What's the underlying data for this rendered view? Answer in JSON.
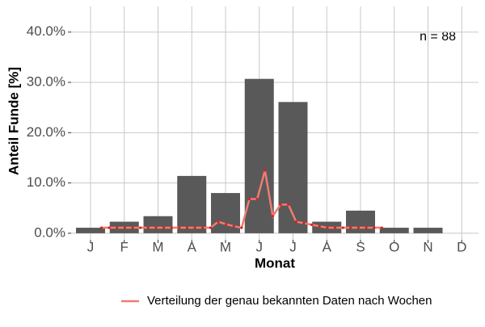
{
  "chart_data": {
    "type": "bar",
    "x_label": "Monat",
    "y_label": "Anteil Funde [%]",
    "annotation": "n = 88",
    "categories": [
      "J",
      "F",
      "M",
      "A",
      "M",
      "J",
      "J",
      "A",
      "S",
      "O",
      "N",
      "D"
    ],
    "values": [
      1.1,
      2.3,
      3.4,
      11.4,
      8.0,
      30.7,
      26.1,
      2.3,
      4.5,
      1.1,
      1.1,
      0
    ],
    "color": "#595959",
    "line": {
      "name": "Verteilung der genau bekannten Daten nach Wochen",
      "color": "#f07b72",
      "marker_color": "#e31a1c",
      "x": [
        4,
        5,
        6,
        7,
        8,
        9,
        10,
        11,
        12,
        13,
        14,
        15,
        16,
        17,
        18,
        19,
        20,
        21,
        22,
        23,
        24,
        25,
        26,
        27,
        28,
        29,
        30,
        31,
        32,
        33,
        34,
        35,
        36,
        37,
        38,
        39,
        40
      ],
      "values": [
        1.1,
        1.1,
        1.1,
        1.1,
        1.1,
        1.1,
        1.1,
        1.1,
        1.1,
        1.1,
        1.1,
        1.1,
        1.1,
        1.1,
        1.1,
        2.3,
        1.8,
        1.4,
        1.1,
        6.8,
        6.8,
        12.5,
        3.4,
        5.7,
        5.7,
        2.3,
        2.0,
        1.7,
        1.4,
        1.1,
        1.1,
        1.1,
        1.1,
        1.1,
        1.1,
        1.1,
        1.1
      ]
    },
    "ylim": [
      -1.3,
      45.1
    ],
    "yticks": [
      {
        "value": 0,
        "label": "0.0%"
      },
      {
        "value": 10,
        "label": "10.0%"
      },
      {
        "value": 20,
        "label": "20.0%"
      },
      {
        "value": 30,
        "label": "30.0%"
      },
      {
        "value": 40,
        "label": "40.0%"
      }
    ],
    "grid": true
  }
}
